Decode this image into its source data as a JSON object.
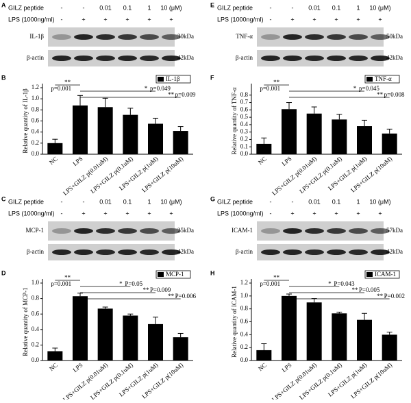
{
  "blots": [
    {
      "letter": "A",
      "rows": [
        {
          "label": "GILZ peptide",
          "cells": [
            "-",
            "-",
            "0.01",
            "0.1",
            "1",
            "10 (μM)"
          ]
        },
        {
          "label": "LPS (1000ng/ml)",
          "cells": [
            "-",
            "+",
            "+",
            "+",
            "+",
            "+"
          ]
        }
      ],
      "bands": [
        {
          "label": "IL-1β",
          "size": "30kDa"
        },
        {
          "label": "β-actin",
          "size": "42kDa"
        }
      ]
    },
    {
      "letter": "E",
      "rows": [
        {
          "label": "GILZ peptide",
          "cells": [
            "-",
            "-",
            "0.01",
            "0.1",
            "1",
            "10 (μM)"
          ]
        },
        {
          "label": "LPS (1000ng/ml)",
          "cells": [
            "-",
            "+",
            "+",
            "+",
            "+",
            "+"
          ]
        }
      ],
      "bands": [
        {
          "label": "TNF-α",
          "size": "50kDa"
        },
        {
          "label": "β-actin",
          "size": "42kDa"
        }
      ]
    },
    {
      "letter": "C",
      "rows": [
        {
          "label": "GILZ peptide",
          "cells": [
            "-",
            "-",
            "0.01",
            "0.1",
            "1",
            "10 (μM)"
          ]
        },
        {
          "label": "LPS (1000ng/ml)",
          "cells": [
            "-",
            "+",
            "+",
            "+",
            "+",
            "+"
          ]
        }
      ],
      "bands": [
        {
          "label": "MCP-1",
          "size": "25kDa"
        },
        {
          "label": "β-actin",
          "size": "42kDa"
        }
      ]
    },
    {
      "letter": "G",
      "rows": [
        {
          "label": "GILZ peptide",
          "cells": [
            "-",
            "-",
            "0.01",
            "0.1",
            "1",
            "10 (μM)"
          ]
        },
        {
          "label": "LPS (1000ng/ml)",
          "cells": [
            "-",
            "+",
            "+",
            "+",
            "+",
            "+"
          ]
        }
      ],
      "bands": [
        {
          "label": "ICAM-1",
          "size": "57kDa"
        },
        {
          "label": "β-actin",
          "size": "42kDa"
        }
      ]
    }
  ],
  "chart_data": [
    {
      "type": "bar",
      "letter": "B",
      "legend": "IL-1β",
      "ylabel": "Relative quantity of IL-1β",
      "color": "#000000",
      "categories": [
        "NC",
        "LPS",
        "LPS+GILZ p(0.01uM)",
        "LPS+GILZ p(0.1uM)",
        "LPS+GILZ p(1uM)",
        "LPS+GILZ p(10uM)"
      ],
      "values": [
        0.2,
        0.88,
        0.85,
        0.71,
        0.55,
        0.42
      ],
      "errors": [
        0.07,
        0.18,
        0.16,
        0.12,
        0.1,
        0.08
      ],
      "ylim": [
        0,
        1.2
      ],
      "yticks": [
        {
          "value": 0,
          "label": "0.0"
        },
        {
          "value": 0.2,
          "label": "0.2"
        },
        {
          "value": 0.4,
          "label": "0.4"
        },
        {
          "value": 0.6,
          "label": "0.6"
        },
        {
          "value": 0.8,
          "label": "0.8"
        },
        {
          "value": 1,
          "label": "1.0"
        },
        {
          "value": 1.2,
          "label": "1.2"
        }
      ],
      "annotations": [
        {
          "stars": "**",
          "p": "p=0.001"
        },
        {
          "stars": "*",
          "p": "p=0.049"
        },
        {
          "stars": "**",
          "p": "p=0.009"
        }
      ]
    },
    {
      "type": "bar",
      "letter": "F",
      "legend": "TNF-α",
      "ylabel": "Relative quantity of TNF-α",
      "color": "#000000",
      "categories": [
        "NC",
        "LPS",
        "LPS+GILZ p(0.01uM)",
        "LPS+GILZ p(0.1uM)",
        "LPS+GILZ p(1uM)",
        "LPS+GILZ p(10uM)"
      ],
      "values": [
        0.14,
        0.61,
        0.55,
        0.47,
        0.38,
        0.28
      ],
      "errors": [
        0.08,
        0.09,
        0.09,
        0.07,
        0.08,
        0.06
      ],
      "ylim": [
        0,
        0.9
      ],
      "yticks": [
        {
          "value": 0,
          "label": "0.0"
        },
        {
          "value": 0.1,
          "label": "0.1"
        },
        {
          "value": 0.2,
          "label": "0.2"
        },
        {
          "value": 0.3,
          "label": "0.3"
        },
        {
          "value": 0.4,
          "label": "0.4"
        },
        {
          "value": 0.5,
          "label": "0.5"
        },
        {
          "value": 0.6,
          "label": "0.6"
        },
        {
          "value": 0.7,
          "label": "0.7"
        },
        {
          "value": 0.8,
          "label": "0.8"
        }
      ],
      "annotations": [
        {
          "stars": "**",
          "p": "p=0.001"
        },
        {
          "stars": "*",
          "p": "p=0.045"
        },
        {
          "stars": "**",
          "p": "p=0.008"
        }
      ]
    },
    {
      "type": "bar",
      "letter": "D",
      "legend": "MCP-1",
      "ylabel": "Relative quantity of MCP-1",
      "color": "#000000",
      "categories": [
        "NC",
        "LPS",
        "LPS+GILZ p(0.01uM)",
        "LPS+GILZ p(0.1uM)",
        "LPS+GILZ p(1uM)",
        "LPS+GILZ p(10uM)"
      ],
      "values": [
        0.12,
        0.83,
        0.67,
        0.58,
        0.47,
        0.3
      ],
      "errors": [
        0.04,
        0.04,
        0.02,
        0.02,
        0.09,
        0.05
      ],
      "ylim": [
        0,
        1
      ],
      "yticks": [
        {
          "value": 0,
          "label": "0.0"
        },
        {
          "value": 0.2,
          "label": "0.2"
        },
        {
          "value": 0.4,
          "label": "0.4"
        },
        {
          "value": 0.6,
          "label": "0.6"
        },
        {
          "value": 0.8,
          "label": "0.8"
        },
        {
          "value": 1,
          "label": "1.0"
        }
      ],
      "annotations": [
        {
          "stars": "**",
          "p": "p=0.001"
        },
        {
          "stars": "*",
          "p": "P=0.05"
        },
        {
          "stars": "**",
          "p": "P=0.009"
        },
        {
          "stars": "**",
          "p": "P=0.006"
        }
      ]
    },
    {
      "type": "bar",
      "letter": "H",
      "legend": "ICAM-1",
      "ylabel": "Relative quantity of ICAM-1",
      "color": "#000000",
      "categories": [
        "NC",
        "LPS",
        "LPS+GILZ p(0.01uM)",
        "LPS+GILZ p(0.1uM)",
        "LPS+GILZ p(1uM)",
        "LPS+GILZ p(10uM)"
      ],
      "values": [
        0.16,
        1,
        0.9,
        0.73,
        0.63,
        0.4
      ],
      "errors": [
        0.1,
        0.03,
        0.06,
        0.02,
        0.1,
        0.04
      ],
      "ylim": [
        0,
        1.2
      ],
      "yticks": [
        {
          "value": 0,
          "label": "0.0"
        },
        {
          "value": 0.2,
          "label": "0.2"
        },
        {
          "value": 0.4,
          "label": "0.4"
        },
        {
          "value": 0.6,
          "label": "0.6"
        },
        {
          "value": 0.8,
          "label": "0.8"
        },
        {
          "value": 1,
          "label": "1.0"
        },
        {
          "value": 1.2,
          "label": "1.2"
        }
      ],
      "annotations": [
        {
          "stars": "**",
          "p": "p=0.001"
        },
        {
          "stars": "*",
          "p": "P=0.043"
        },
        {
          "stars": "**",
          "p": "P=0.005"
        },
        {
          "stars": "**",
          "p": "P=0.002"
        }
      ]
    }
  ]
}
